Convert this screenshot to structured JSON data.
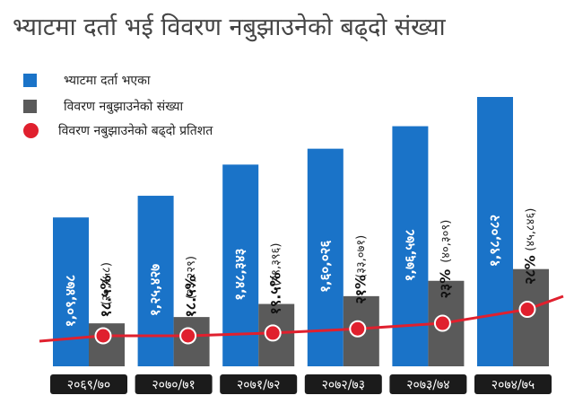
{
  "title": "भ्याटमा दर्ता भई विवरण नबुझाउनेको बढ्दो संख्या",
  "legend": [
    {
      "label": "भ्याटमा दर्ता भएका",
      "color": "#1a73c8",
      "marker": "square"
    },
    {
      "label": "विवरण नबुझाउनेको संख्या",
      "color": "#5a5a5a",
      "marker": "square"
    },
    {
      "label": "विवरण नबुझाउनेको बढ्दो प्रतिशत",
      "color": "#e0202e",
      "marker": "circle"
    }
  ],
  "chart_data": {
    "type": "bar",
    "title": "भ्याटमा दर्ता भई विवरण नबुझाउनेको बढ्दो संख्या",
    "categories": [
      "२०६९/७०",
      "२०७०/७१",
      "२०७१/७२",
      "२०७२/७३",
      "२०७३/७४",
      "२०७४/७५"
    ],
    "series": [
      {
        "name": "भ्याटमा दर्ता भएका",
        "color": "#1a73c8",
        "values": [
          109478,
          125427,
          148343,
          160026,
          176578,
          198082
        ],
        "labels": [
          "१,०९,४७८",
          "१,२५,४२७",
          "१,४८,३४३",
          "१,६०,०२६",
          "१,७६,५७८",
          "१,९८,०८२"
        ]
      },
      {
        "name": "विवरण नबुझाउनेको संख्या",
        "color": "#5a5a5a",
        "values": [
          20258,
          23229,
          29396,
          33071,
          40309,
          45846
        ],
        "labels": [
          "(२०,२५८)",
          "(२३,२२९)",
          "(२९,३९६)",
          "(३३,०७१)",
          "(४०,३०९)",
          "(४५,८४६)"
        ]
      },
      {
        "name": "विवरण नबुझाउनेको बढ्दो प्रतिशत",
        "color": "#e0202e",
        "type": "line",
        "values": [
          18.5,
          18.5,
          19.5,
          21,
          23,
          28
        ],
        "labels": [
          "१८.५%",
          "१८.५%",
          "१९.५%",
          "२१%",
          "२३%",
          "२८%"
        ]
      }
    ],
    "grid": false,
    "legend_position": "top-left"
  }
}
